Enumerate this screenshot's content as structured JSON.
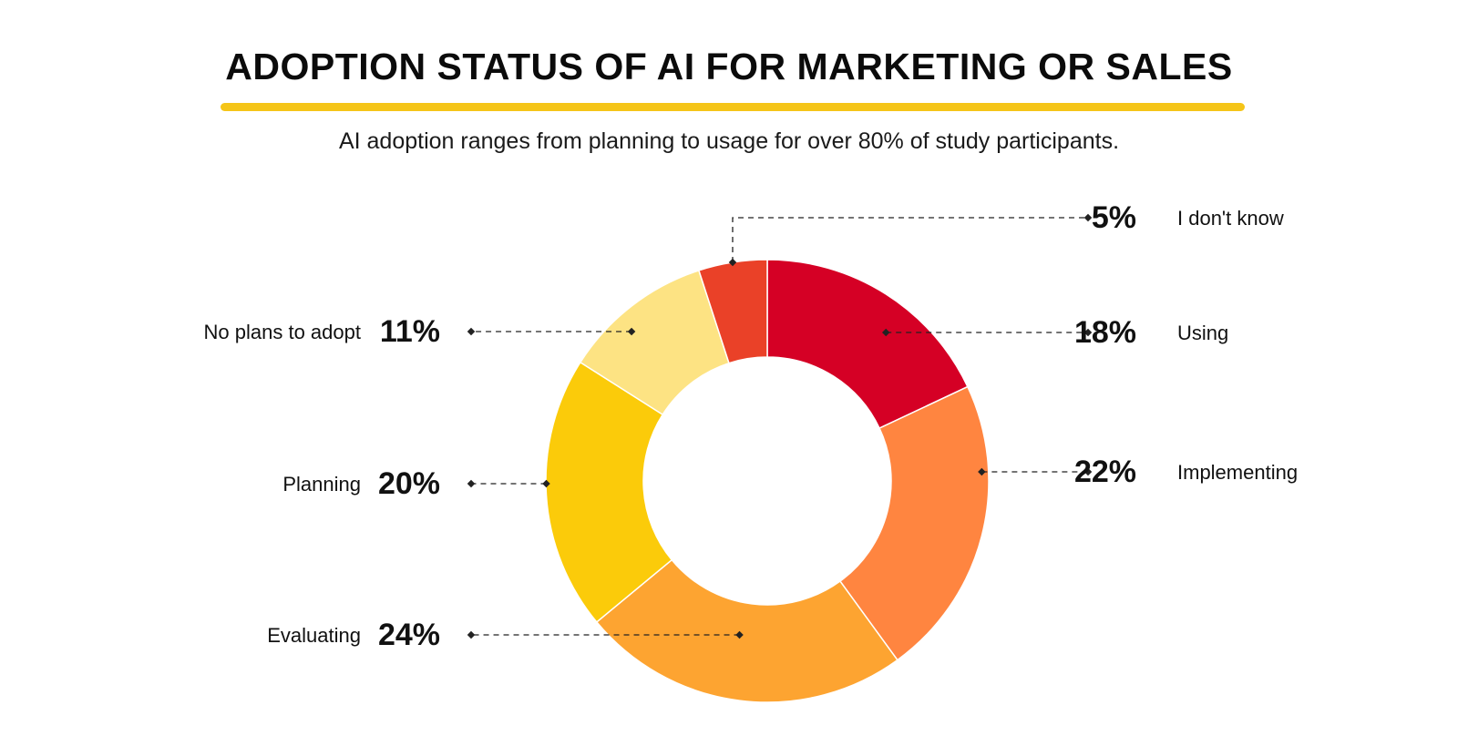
{
  "title": "ADOPTION STATUS OF AI FOR MARKETING OR SALES",
  "subtitle": "AI adoption ranges from planning to usage for over 80% of study participants.",
  "colors": {
    "accent": "#F5C518",
    "leader": "#222222"
  },
  "chart_data": {
    "type": "pie",
    "donut": true,
    "title": "ADOPTION STATUS OF AI FOR MARKETING OR SALES",
    "subtitle": "AI adoption ranges from planning to usage for over 80% of study participants.",
    "slices": [
      {
        "label": "Using",
        "value": 18,
        "display": "18%",
        "color": "#D50025",
        "side": "right"
      },
      {
        "label": "Implementing",
        "value": 22,
        "display": "22%",
        "color": "#FF8540",
        "side": "right"
      },
      {
        "label": "Evaluating",
        "value": 24,
        "display": "24%",
        "color": "#FDA431",
        "side": "left"
      },
      {
        "label": "Planning",
        "value": 20,
        "display": "20%",
        "color": "#FBCB0A",
        "side": "left"
      },
      {
        "label": "No plans to adopt",
        "value": 11,
        "display": "11%",
        "color": "#FDE383",
        "side": "left"
      },
      {
        "label": "I don't know",
        "value": 5,
        "display": "5%",
        "color": "#EA4128",
        "side": "right"
      }
    ],
    "legend": "none"
  }
}
